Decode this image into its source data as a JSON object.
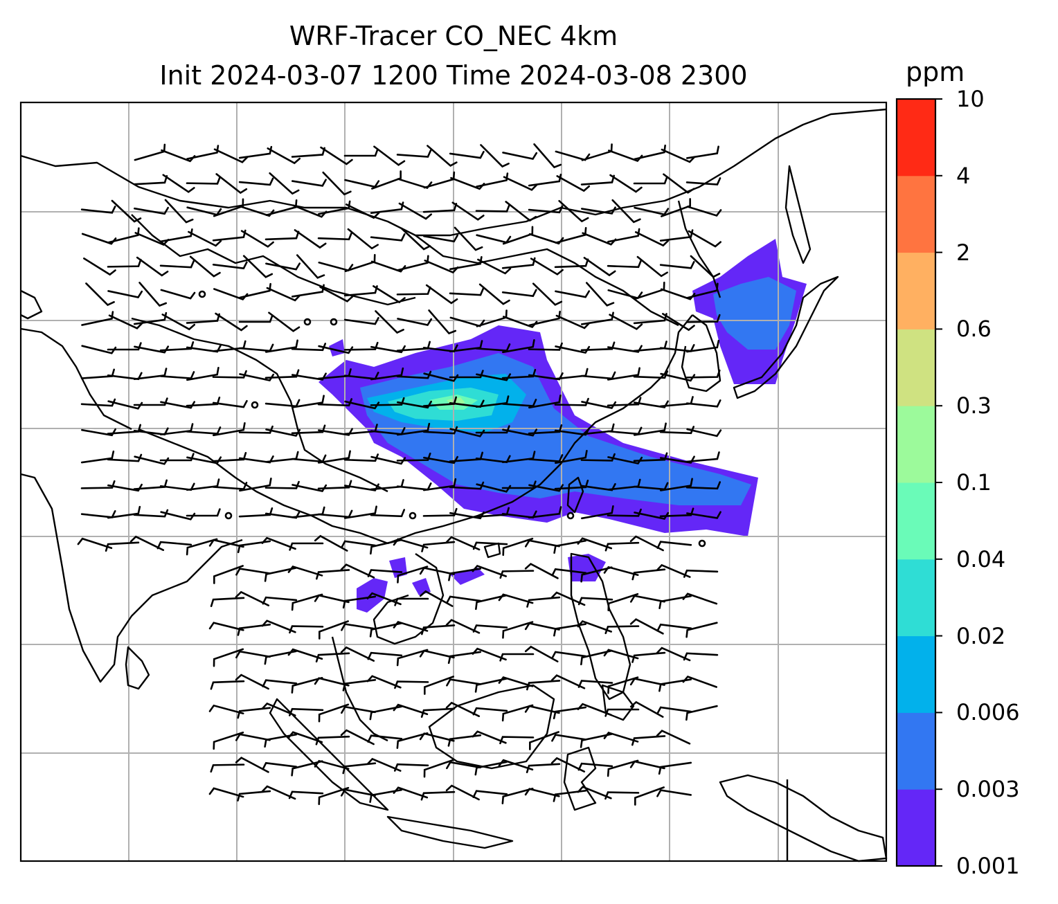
{
  "title": {
    "line1": "WRF-Tracer CO_NEC 4km",
    "line2": "Init 2024-03-07 1200 Time 2024-03-08 2300"
  },
  "colorbar": {
    "unit": "ppm",
    "levels": [
      "0.001",
      "0.003",
      "0.006",
      "0.02",
      "0.04",
      "0.1",
      "0.3",
      "0.6",
      "2",
      "4",
      "10"
    ],
    "colors": [
      "#6427F7",
      "#3277F2",
      "#02B1EB",
      "#2FDDD5",
      "#6AFBB8",
      "#9CFA9B",
      "#CFE281",
      "#FFB061",
      "#FF7440",
      "#FF2A15"
    ]
  },
  "map": {
    "gridlines": true,
    "background": "#ffffff",
    "coastline_color": "#000000",
    "gridline_color": "#b0b0b0"
  }
}
